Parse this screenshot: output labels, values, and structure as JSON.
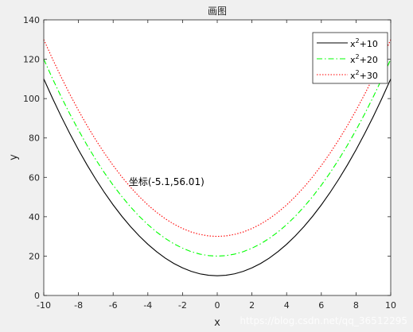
{
  "chart_data": {
    "type": "line",
    "title": "画图",
    "xlabel": "x",
    "ylabel": "y",
    "xlim": [
      -10,
      10
    ],
    "ylim": [
      0,
      140
    ],
    "xticks": [
      -10,
      -8,
      -6,
      -4,
      -2,
      0,
      2,
      4,
      6,
      8,
      10
    ],
    "yticks": [
      0,
      20,
      40,
      60,
      80,
      100,
      120,
      140
    ],
    "grid": false,
    "legend_position": "top-right",
    "x": [
      -10,
      -9.5,
      -9,
      -8.5,
      -8,
      -7.5,
      -7,
      -6.5,
      -6,
      -5.5,
      -5,
      -4.5,
      -4,
      -3.5,
      -3,
      -2.5,
      -2,
      -1.5,
      -1,
      -0.5,
      0,
      0.5,
      1,
      1.5,
      2,
      2.5,
      3,
      3.5,
      4,
      4.5,
      5,
      5.5,
      6,
      6.5,
      7,
      7.5,
      8,
      8.5,
      9,
      9.5,
      10
    ],
    "series": [
      {
        "name_base": "x",
        "name_exp": "2",
        "name_tail": "+10",
        "color": "#000000",
        "style": "solid",
        "values": [
          110,
          100.25,
          91,
          82.25,
          74,
          66.25,
          59,
          52.25,
          46,
          40.25,
          35,
          30.25,
          26,
          22.25,
          19,
          16.25,
          14,
          12.25,
          11,
          10.25,
          10,
          10.25,
          11,
          12.25,
          14,
          16.25,
          19,
          22.25,
          26,
          30.25,
          35,
          40.25,
          46,
          52.25,
          59,
          66.25,
          74,
          82.25,
          91,
          100.25,
          110
        ]
      },
      {
        "name_base": "x",
        "name_exp": "2",
        "name_tail": "+20",
        "color": "#00ff00",
        "style": "dashdot",
        "values": [
          120,
          110.25,
          101,
          92.25,
          84,
          76.25,
          69,
          62.25,
          56,
          50.25,
          45,
          40.25,
          36,
          32.25,
          29,
          26.25,
          24,
          22.25,
          21,
          20.25,
          20,
          20.25,
          21,
          22.25,
          24,
          26.25,
          29,
          32.25,
          36,
          40.25,
          45,
          50.25,
          56,
          62.25,
          69,
          76.25,
          84,
          92.25,
          101,
          110.25,
          120
        ]
      },
      {
        "name_base": "x",
        "name_exp": "2",
        "name_tail": "+30",
        "color": "#ff0000",
        "style": "dotted",
        "values": [
          130,
          120.25,
          111,
          102.25,
          94,
          86.25,
          79,
          72.25,
          66,
          60.25,
          55,
          50.25,
          46,
          42.25,
          39,
          36.25,
          34,
          32.25,
          31,
          30.25,
          30,
          30.25,
          31,
          32.25,
          34,
          36.25,
          39,
          42.25,
          46,
          50.25,
          55,
          60.25,
          66,
          72.25,
          79,
          86.25,
          94,
          102.25,
          111,
          120.25,
          130
        ]
      }
    ],
    "annotation": {
      "text": "坐标(-5.1,56.01)",
      "x": -5.1,
      "y": 56.01
    }
  },
  "watermark": "https://blog.csdn.net/qq_36512295"
}
